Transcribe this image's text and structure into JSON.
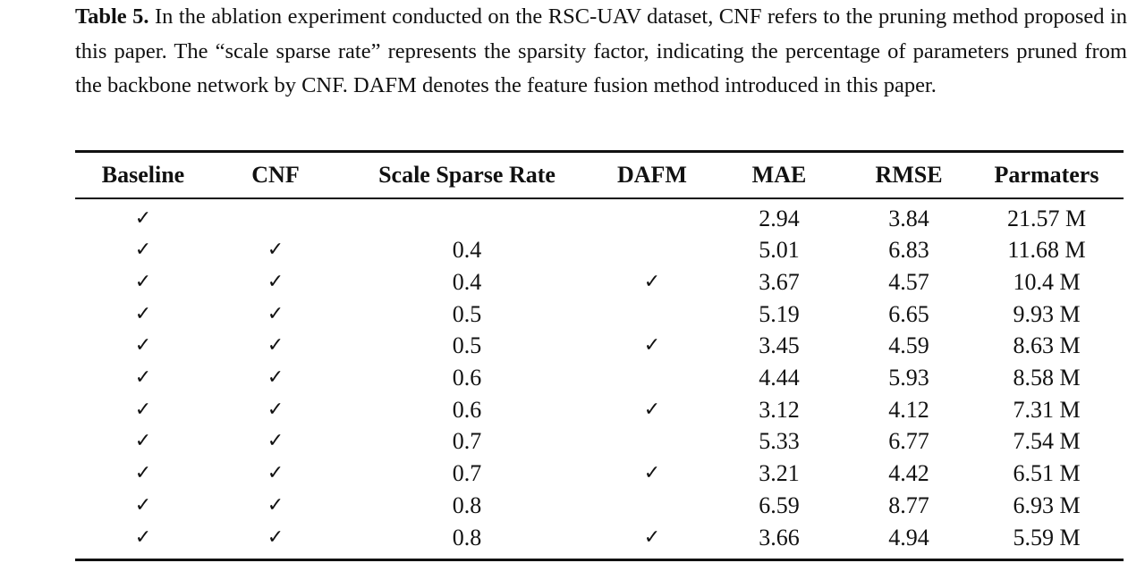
{
  "caption": {
    "label": "Table 5.",
    "text": " In the ablation experiment conducted on the RSC-UAV dataset, CNF refers to the pruning method proposed in this paper. The “scale sparse rate” represents the sparsity factor, indicating the percentage of parameters pruned from the backbone network by CNF. DAFM denotes the feature fusion method introduced in this paper."
  },
  "table": {
    "headers": [
      "Baseline",
      "CNF",
      "Scale Sparse Rate",
      "DAFM",
      "MAE",
      "RMSE",
      "Parmaters"
    ],
    "rows": [
      {
        "baseline": "✓",
        "cnf": "",
        "rate": "",
        "dafm": "",
        "mae": "2.94",
        "rmse": "3.84",
        "params": "21.57 M"
      },
      {
        "baseline": "✓",
        "cnf": "✓",
        "rate": "0.4",
        "dafm": "",
        "mae": "5.01",
        "rmse": "6.83",
        "params": "11.68 M"
      },
      {
        "baseline": "✓",
        "cnf": "✓",
        "rate": "0.4",
        "dafm": "✓",
        "mae": "3.67",
        "rmse": "4.57",
        "params": "10.4 M"
      },
      {
        "baseline": "✓",
        "cnf": "✓",
        "rate": "0.5",
        "dafm": "",
        "mae": "5.19",
        "rmse": "6.65",
        "params": "9.93 M"
      },
      {
        "baseline": "✓",
        "cnf": "✓",
        "rate": "0.5",
        "dafm": "✓",
        "mae": "3.45",
        "rmse": "4.59",
        "params": "8.63 M"
      },
      {
        "baseline": "✓",
        "cnf": "✓",
        "rate": "0.6",
        "dafm": "",
        "mae": "4.44",
        "rmse": "5.93",
        "params": "8.58 M"
      },
      {
        "baseline": "✓",
        "cnf": "✓",
        "rate": "0.6",
        "dafm": "✓",
        "mae": "3.12",
        "rmse": "4.12",
        "params": "7.31 M"
      },
      {
        "baseline": "✓",
        "cnf": "✓",
        "rate": "0.7",
        "dafm": "",
        "mae": "5.33",
        "rmse": "6.77",
        "params": "7.54 M"
      },
      {
        "baseline": "✓",
        "cnf": "✓",
        "rate": "0.7",
        "dafm": "✓",
        "mae": "3.21",
        "rmse": "4.42",
        "params": "6.51 M"
      },
      {
        "baseline": "✓",
        "cnf": "✓",
        "rate": "0.8",
        "dafm": "",
        "mae": "6.59",
        "rmse": "8.77",
        "params": "6.93 M"
      },
      {
        "baseline": "✓",
        "cnf": "✓",
        "rate": "0.8",
        "dafm": "✓",
        "mae": "3.66",
        "rmse": "4.94",
        "params": "5.59 M"
      }
    ]
  }
}
